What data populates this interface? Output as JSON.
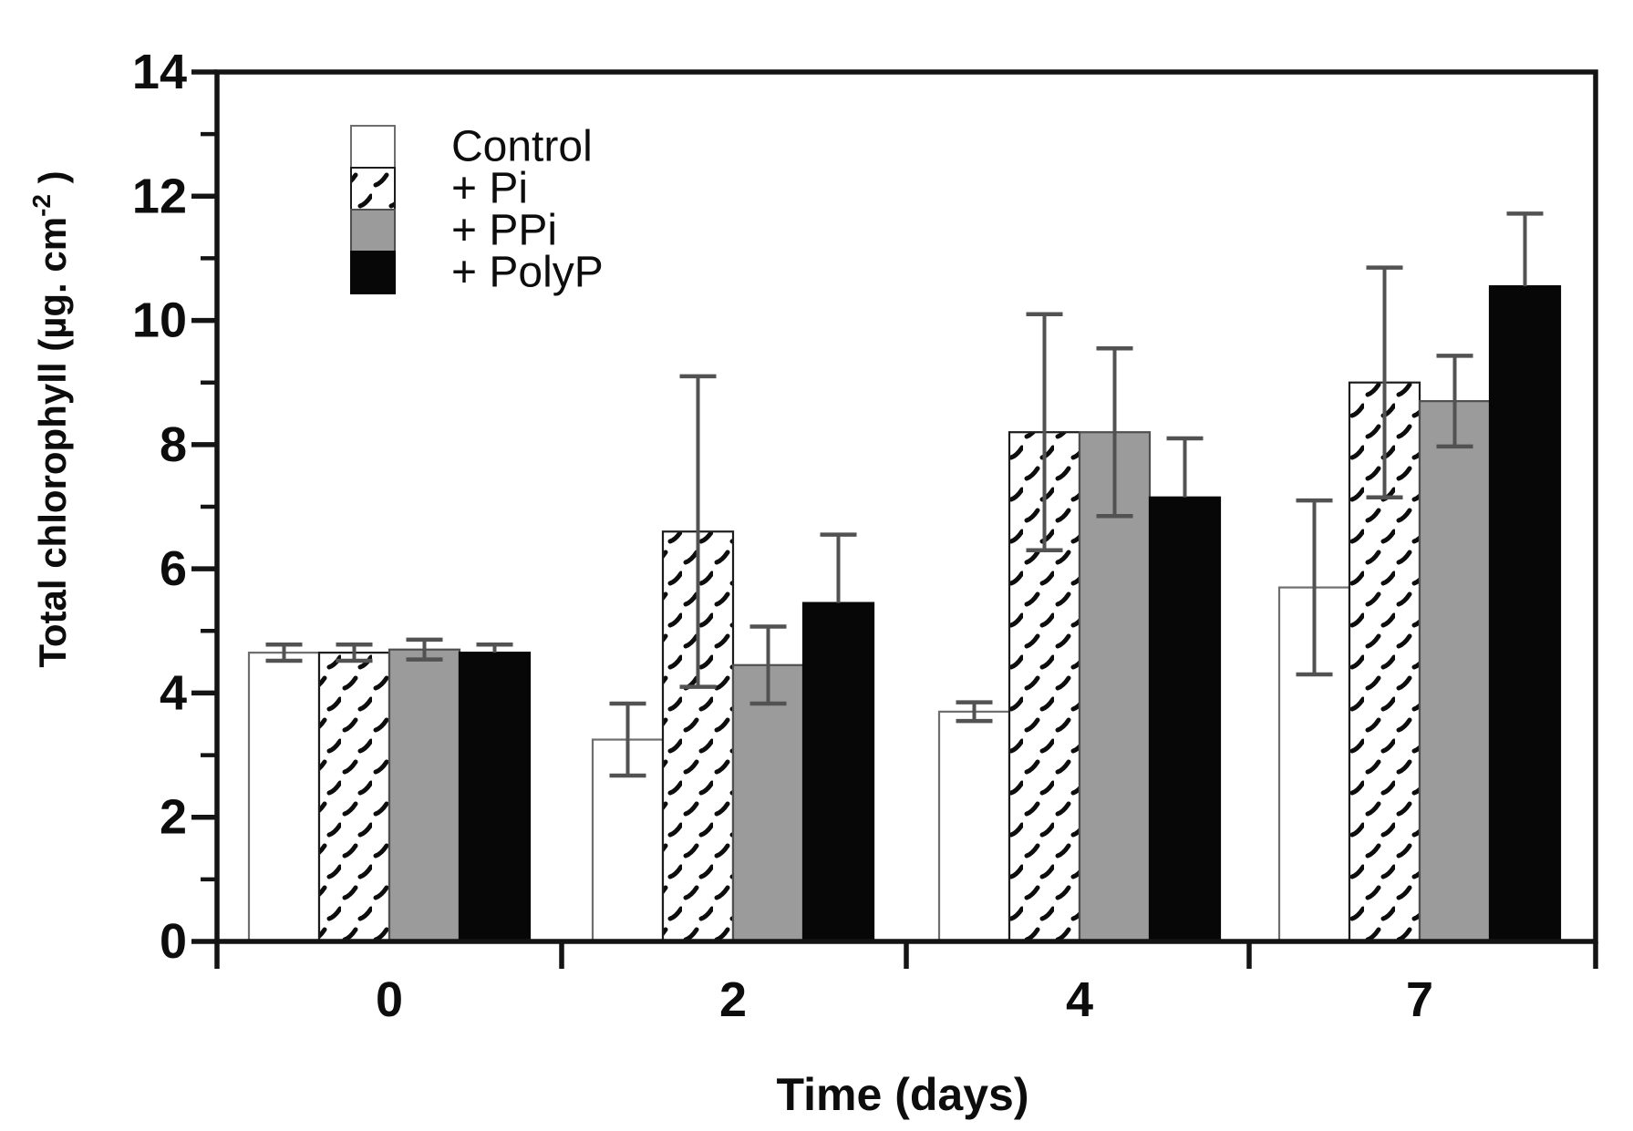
{
  "chart_data": {
    "type": "bar",
    "title": "",
    "xlabel": "Time (days)",
    "ylabel": "Total chlorophyll (µg. cm-2 )",
    "ylabel_parts": {
      "main": "Total chlorophyll (µg. cm",
      "sup": "-2",
      "close": " )"
    },
    "categories": [
      "0",
      "2",
      "4",
      "7"
    ],
    "ylim": [
      0,
      14
    ],
    "yticks_major": [
      0,
      2,
      4,
      6,
      8,
      10,
      12,
      14
    ],
    "yticks_minor": [
      1,
      3,
      5,
      7,
      9,
      11,
      13
    ],
    "grid": false,
    "legend": {
      "position": "top-left",
      "labels": [
        "Control",
        "+ Pi",
        "+ PPi",
        "+ PolyP"
      ]
    },
    "series": [
      {
        "name": "Control",
        "swatch": "white",
        "fill": "#ffffff",
        "stroke": "#6e6e6e",
        "pattern": "none",
        "error_style": "full",
        "values": [
          4.65,
          3.25,
          3.7,
          5.7
        ],
        "errors": [
          0.13,
          0.58,
          0.15,
          1.4
        ]
      },
      {
        "name": "+ Pi",
        "swatch": "diagonal-dash-hatch",
        "fill": "#ffffff",
        "stroke": "#1c1c1c",
        "pattern": "hatch",
        "error_style": "full",
        "values": [
          4.65,
          6.6,
          8.2,
          9.0
        ],
        "errors": [
          0.13,
          2.5,
          1.9,
          1.85
        ]
      },
      {
        "name": "+ PPi",
        "swatch": "gray",
        "fill": "#9b9b9b",
        "stroke": "#4f4f4f",
        "pattern": "none",
        "error_style": "full",
        "values": [
          4.7,
          4.45,
          8.2,
          8.7
        ],
        "errors": [
          0.16,
          0.62,
          1.35,
          0.73
        ]
      },
      {
        "name": "+ PolyP",
        "swatch": "black",
        "fill": "#070707",
        "stroke": "#070707",
        "pattern": "none",
        "error_style": "upper",
        "values": [
          4.65,
          5.45,
          7.15,
          10.55
        ],
        "errors": [
          0.13,
          1.1,
          0.95,
          1.17
        ]
      }
    ],
    "error_bar_color": "#525252",
    "axis_color": "#141414"
  }
}
